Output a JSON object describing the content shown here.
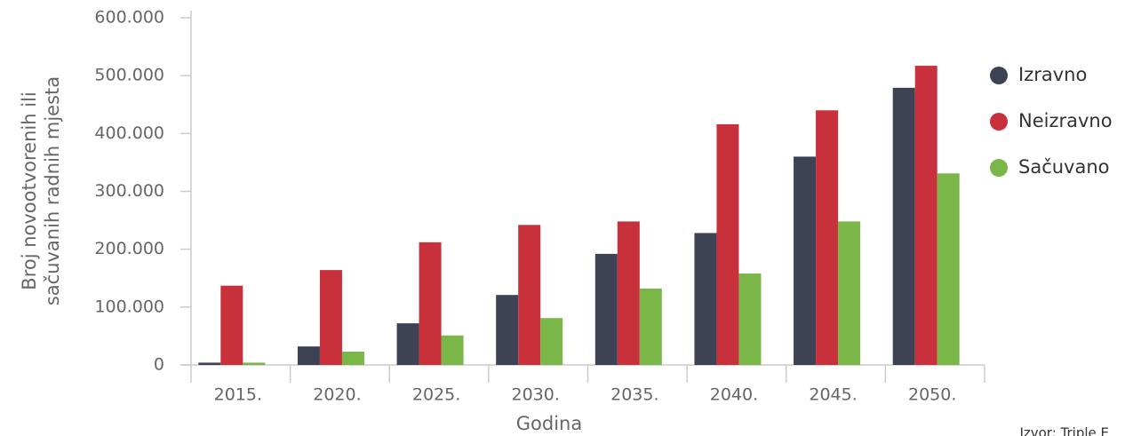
{
  "chart_data": {
    "type": "bar",
    "ylabel": [
      "Broj novootvorenih ili",
      "sačuvanih radnih mjesta"
    ],
    "xlabel": "Godina",
    "source": "Izvor: Triple E",
    "categories": [
      "2015.",
      "2020.",
      "2025.",
      "2030.",
      "2035.",
      "2040.",
      "2045.",
      "2050."
    ],
    "series": [
      {
        "name": "Izravno",
        "color": "#3d4355",
        "values": [
          4000,
          32000,
          72000,
          121000,
          192000,
          228000,
          360000,
          479000
        ]
      },
      {
        "name": "Neizravno",
        "color": "#c8303b",
        "values": [
          137000,
          164000,
          212000,
          242000,
          248000,
          416000,
          440000,
          517000
        ]
      },
      {
        "name": "Sačuvano",
        "color": "#7ab648",
        "values": [
          4000,
          23000,
          51000,
          81000,
          132000,
          158000,
          248000,
          331000
        ]
      }
    ],
    "ylim": [
      0,
      600000
    ],
    "yticks": [
      0,
      {
        "value": 100000,
        "label": "100.000"
      },
      {
        "value": 200000,
        "label": "200.000"
      },
      {
        "value": 300000,
        "label": "300.000"
      },
      {
        "value": 400000,
        "label": "400.000"
      },
      {
        "value": 500000,
        "label": "500.000"
      },
      {
        "value": 600000,
        "label": "600.000"
      }
    ],
    "legend": "right"
  }
}
